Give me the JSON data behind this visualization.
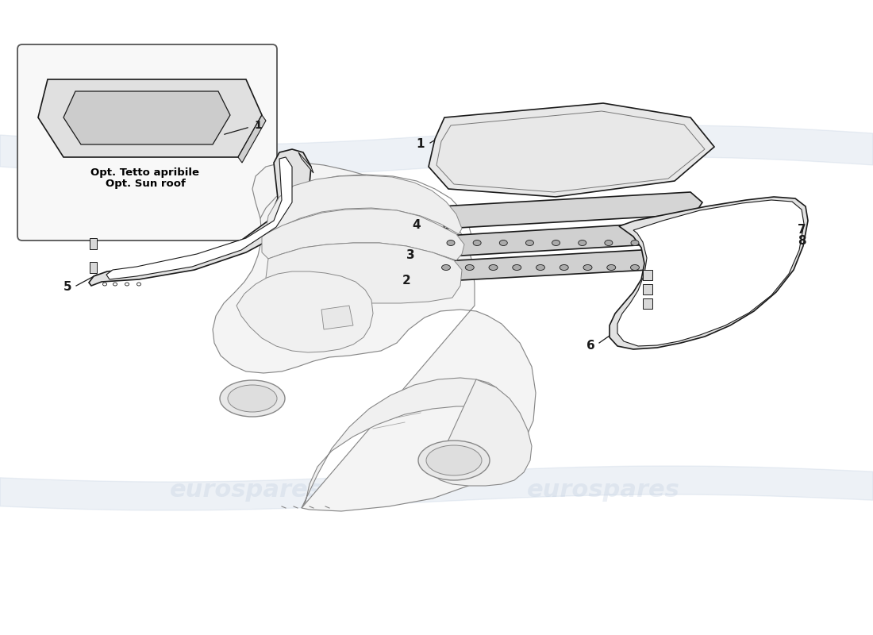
{
  "background_color": "#ffffff",
  "line_color": "#2a2a2a",
  "part_line_color": "#1a1a1a",
  "car_line_color": "#888888",
  "watermark_text": "eurospares",
  "watermark_color": "#b8c8dc",
  "box_label1": "Opt. Tetto apribile",
  "box_label2": "Opt. Sun roof",
  "label_fontsize": 9,
  "part_label_fontsize": 11
}
